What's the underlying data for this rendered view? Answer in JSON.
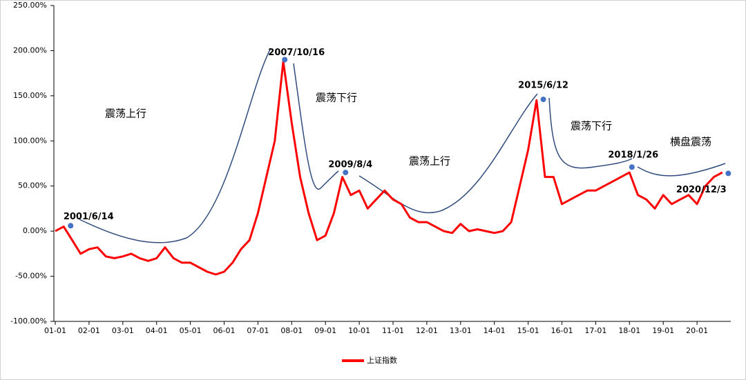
{
  "chart_data": {
    "type": "line",
    "categories": [
      "01-01",
      null,
      null,
      null,
      "02-01",
      null,
      null,
      null,
      "03-01",
      null,
      null,
      null,
      "04-01",
      null,
      null,
      null,
      "05-01",
      null,
      null,
      null,
      "06-01",
      null,
      null,
      null,
      "07-01",
      null,
      null,
      null,
      "08-01",
      null,
      null,
      null,
      "09-01",
      null,
      null,
      null,
      "10-01",
      null,
      null,
      null,
      "11-01",
      null,
      null,
      null,
      "12-01",
      null,
      null,
      null,
      "13-01",
      null,
      null,
      null,
      "14-01",
      null,
      null,
      null,
      "15-01",
      null,
      null,
      null,
      "16-01",
      null,
      null,
      null,
      "17-01",
      null,
      null,
      null,
      "18-01",
      null,
      null,
      null,
      "19-01",
      null,
      null,
      null,
      "20-01",
      null,
      null,
      null
    ],
    "series": [
      {
        "name": "上证指数",
        "color": "#ff0000",
        "values": [
          0,
          5,
          -10,
          -25,
          -20,
          -18,
          -28,
          -30,
          -28,
          -25,
          -30,
          -33,
          -30,
          -18,
          -30,
          -35,
          -35,
          -40,
          -45,
          -48,
          -45,
          -35,
          -20,
          -10,
          20,
          60,
          100,
          188,
          120,
          60,
          20,
          -10,
          -5,
          20,
          60,
          40,
          45,
          25,
          35,
          45,
          35,
          30,
          15,
          10,
          10,
          5,
          0,
          -2,
          8,
          0,
          2,
          0,
          -2,
          0,
          10,
          50,
          90,
          145,
          60,
          60,
          30,
          35,
          40,
          45,
          45,
          50,
          55,
          60,
          65,
          40,
          35,
          25,
          40,
          30,
          35,
          40,
          30,
          50,
          60,
          65
        ]
      }
    ],
    "ylim": [
      -100,
      250
    ],
    "yticks": [
      {
        "value": -100,
        "label": "-100.00%"
      },
      {
        "value": -50,
        "label": "-50.00%"
      },
      {
        "value": 0,
        "label": "0.00%"
      },
      {
        "value": 50,
        "label": "50.00%"
      },
      {
        "value": 100,
        "label": "100.00%"
      },
      {
        "value": 150,
        "label": "150.00%"
      },
      {
        "value": 200,
        "label": "200.00%"
      },
      {
        "value": 250,
        "label": "250.00%"
      }
    ],
    "points": [
      {
        "label": "2001/6/14",
        "value": 6
      },
      {
        "label": "2007/10/16",
        "value": 190
      },
      {
        "label": "2009/8/4",
        "value": 65
      },
      {
        "label": "2015/6/12",
        "value": 146
      },
      {
        "label": "2018/1/26",
        "value": 71
      },
      {
        "label": "2020/12/3",
        "value": 64
      }
    ],
    "phases": [
      "震荡上行",
      "震荡下行",
      "震荡上行",
      "震荡下行",
      "横盘震荡"
    ],
    "trend_color": "#2f4b7c",
    "point_color": "#4472c4"
  }
}
